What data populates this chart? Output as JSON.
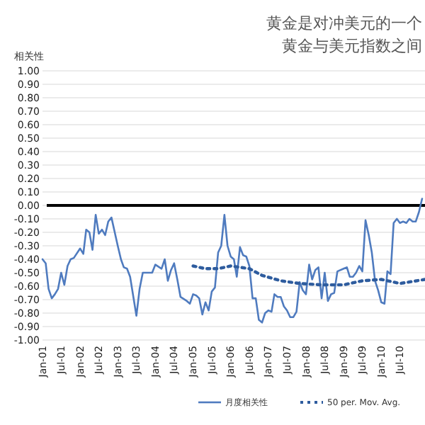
{
  "chart_data": {
    "type": "line",
    "title": "黄金是对冲美元的一个",
    "subtitle": "黄金与美元指数之间",
    "ylabel": "相关性",
    "xlim": [
      "2001-01",
      "2011-03"
    ],
    "ylim": [
      -1,
      1
    ],
    "yticks": [
      {
        "value": -1,
        "label": "-1.00"
      },
      {
        "value": -0.9,
        "label": "-0.90"
      },
      {
        "value": -0.8,
        "label": "-0.80"
      },
      {
        "value": -0.7,
        "label": "-0.70"
      },
      {
        "value": -0.6,
        "label": "-0.60"
      },
      {
        "value": -0.5,
        "label": "-0.50"
      },
      {
        "value": -0.4,
        "label": "-0.40"
      },
      {
        "value": -0.3,
        "label": "-0.30"
      },
      {
        "value": -0.2,
        "label": "-0.20"
      },
      {
        "value": -0.1,
        "label": "-0.10"
      },
      {
        "value": 0,
        "label": "0.00"
      },
      {
        "value": 0.1,
        "label": "0.10"
      },
      {
        "value": 0.2,
        "label": "0.20"
      },
      {
        "value": 0.3,
        "label": "0.30"
      },
      {
        "value": 0.4,
        "label": "0.40"
      },
      {
        "value": 0.5,
        "label": "0.50"
      },
      {
        "value": 0.6,
        "label": "0.60"
      },
      {
        "value": 0.7,
        "label": "0.70"
      },
      {
        "value": 0.8,
        "label": "0.80"
      },
      {
        "value": 0.9,
        "label": "0.90"
      },
      {
        "value": 1,
        "label": "1.00"
      }
    ],
    "xticks": [
      {
        "value": "2001-01",
        "label": "Jan-01"
      },
      {
        "value": "2001-07",
        "label": "Jul-01"
      },
      {
        "value": "2002-01",
        "label": "Jan-02"
      },
      {
        "value": "2002-07",
        "label": "Jul-02"
      },
      {
        "value": "2003-01",
        "label": "Jan-03"
      },
      {
        "value": "2003-07",
        "label": "Jul-03"
      },
      {
        "value": "2004-01",
        "label": "Jan-04"
      },
      {
        "value": "2004-07",
        "label": "Jul-04"
      },
      {
        "value": "2005-01",
        "label": "Jan-05"
      },
      {
        "value": "2005-07",
        "label": "Jul-05"
      },
      {
        "value": "2006-01",
        "label": "Jan-06"
      },
      {
        "value": "2006-07",
        "label": "Jul-06"
      },
      {
        "value": "2007-01",
        "label": "Jan-07"
      },
      {
        "value": "2007-07",
        "label": "Jul-07"
      },
      {
        "value": "2008-01",
        "label": "Jan-08"
      },
      {
        "value": "2008-07",
        "label": "Jul-08"
      },
      {
        "value": "2009-01",
        "label": "Jan-09"
      },
      {
        "value": "2009-07",
        "label": "Jul-09"
      },
      {
        "value": "2010-01",
        "label": "Jan-10"
      },
      {
        "value": "2010-07",
        "label": "Jul-10"
      }
    ],
    "grid": "y",
    "legend": "bottom",
    "ref_lines": [
      {
        "axis": "y",
        "value": 0,
        "color": "#000000"
      }
    ],
    "series": [
      {
        "name": "月度相关性",
        "color": "#4f7bbf",
        "line_style": "solid",
        "x": [
          "2001-01",
          "2001-02",
          "2001-03",
          "2001-04",
          "2001-05",
          "2001-06",
          "2001-07",
          "2001-08",
          "2001-09",
          "2001-10",
          "2001-11",
          "2002-01",
          "2002-02",
          "2002-03",
          "2002-04",
          "2002-05",
          "2002-06",
          "2002-07",
          "2002-08",
          "2002-09",
          "2002-10",
          "2002-11",
          "2003-01",
          "2003-02",
          "2003-03",
          "2003-04",
          "2003-05",
          "2003-07",
          "2003-08",
          "2003-09",
          "2003-10",
          "2003-12",
          "2004-01",
          "2004-03",
          "2004-04",
          "2004-05",
          "2004-06",
          "2004-07",
          "2004-08",
          "2004-09",
          "2004-11",
          "2004-12",
          "2005-01",
          "2005-02",
          "2005-03",
          "2005-04",
          "2005-05",
          "2005-06",
          "2005-07",
          "2005-08",
          "2005-09",
          "2005-10",
          "2005-11",
          "2005-12",
          "2006-01",
          "2006-02",
          "2006-03",
          "2006-04",
          "2006-05",
          "2006-06",
          "2006-07",
          "2006-08",
          "2006-09",
          "2006-10",
          "2006-11",
          "2006-12",
          "2007-01",
          "2007-02",
          "2007-03",
          "2007-04",
          "2007-05",
          "2007-06",
          "2007-07",
          "2007-08",
          "2007-09",
          "2007-10",
          "2007-11",
          "2007-12",
          "2008-01",
          "2008-02",
          "2008-03",
          "2008-04",
          "2008-05",
          "2008-06",
          "2008-07",
          "2008-08",
          "2008-09",
          "2008-10",
          "2008-11",
          "2009-01",
          "2009-02",
          "2009-03",
          "2009-04",
          "2009-05",
          "2009-06",
          "2009-07",
          "2009-08",
          "2009-09",
          "2009-10",
          "2009-11",
          "2009-12",
          "2010-01",
          "2010-02",
          "2010-03",
          "2010-04",
          "2010-05",
          "2010-06",
          "2010-07",
          "2010-08",
          "2010-09",
          "2010-10",
          "2010-11",
          "2010-12",
          "2011-01",
          "2011-02"
        ],
        "values": [
          -0.4,
          -0.43,
          -0.62,
          -0.69,
          -0.66,
          -0.62,
          -0.5,
          -0.59,
          -0.45,
          -0.4,
          -0.39,
          -0.32,
          -0.36,
          -0.18,
          -0.2,
          -0.33,
          -0.07,
          -0.21,
          -0.18,
          -0.22,
          -0.12,
          -0.09,
          -0.3,
          -0.4,
          -0.46,
          -0.47,
          -0.53,
          -0.82,
          -0.62,
          -0.5,
          -0.5,
          -0.5,
          -0.44,
          -0.47,
          -0.4,
          -0.56,
          -0.48,
          -0.43,
          -0.55,
          -0.68,
          -0.71,
          -0.73,
          -0.66,
          -0.67,
          -0.69,
          -0.81,
          -0.72,
          -0.78,
          -0.64,
          -0.61,
          -0.35,
          -0.3,
          -0.07,
          -0.3,
          -0.38,
          -0.4,
          -0.53,
          -0.31,
          -0.37,
          -0.38,
          -0.45,
          -0.69,
          -0.69,
          -0.85,
          -0.87,
          -0.8,
          -0.78,
          -0.79,
          -0.66,
          -0.68,
          -0.68,
          -0.75,
          -0.78,
          -0.83,
          -0.83,
          -0.79,
          -0.57,
          -0.63,
          -0.66,
          -0.44,
          -0.55,
          -0.48,
          -0.46,
          -0.69,
          -0.5,
          -0.71,
          -0.66,
          -0.65,
          -0.49,
          -0.47,
          -0.46,
          -0.53,
          -0.53,
          -0.5,
          -0.45,
          -0.49,
          -0.11,
          -0.22,
          -0.35,
          -0.56,
          -0.63,
          -0.72,
          -0.73,
          -0.49,
          -0.51,
          -0.13,
          -0.1,
          -0.13,
          -0.12,
          -0.13,
          -0.1,
          -0.12,
          -0.12,
          -0.05,
          0.05
        ]
      },
      {
        "name": "50 per. Mov. Avg.",
        "color": "#2e5c9e",
        "line_style": "dotted",
        "x": [
          "2005-01",
          "2005-05",
          "2005-09",
          "2006-01",
          "2006-07",
          "2006-11",
          "2007-05",
          "2007-11",
          "2008-06",
          "2009-01",
          "2009-07",
          "2010-01",
          "2010-07",
          "2011-03"
        ],
        "values": [
          -0.45,
          -0.47,
          -0.47,
          -0.45,
          -0.47,
          -0.52,
          -0.56,
          -0.58,
          -0.59,
          -0.59,
          -0.56,
          -0.55,
          -0.58,
          -0.55
        ]
      }
    ]
  }
}
